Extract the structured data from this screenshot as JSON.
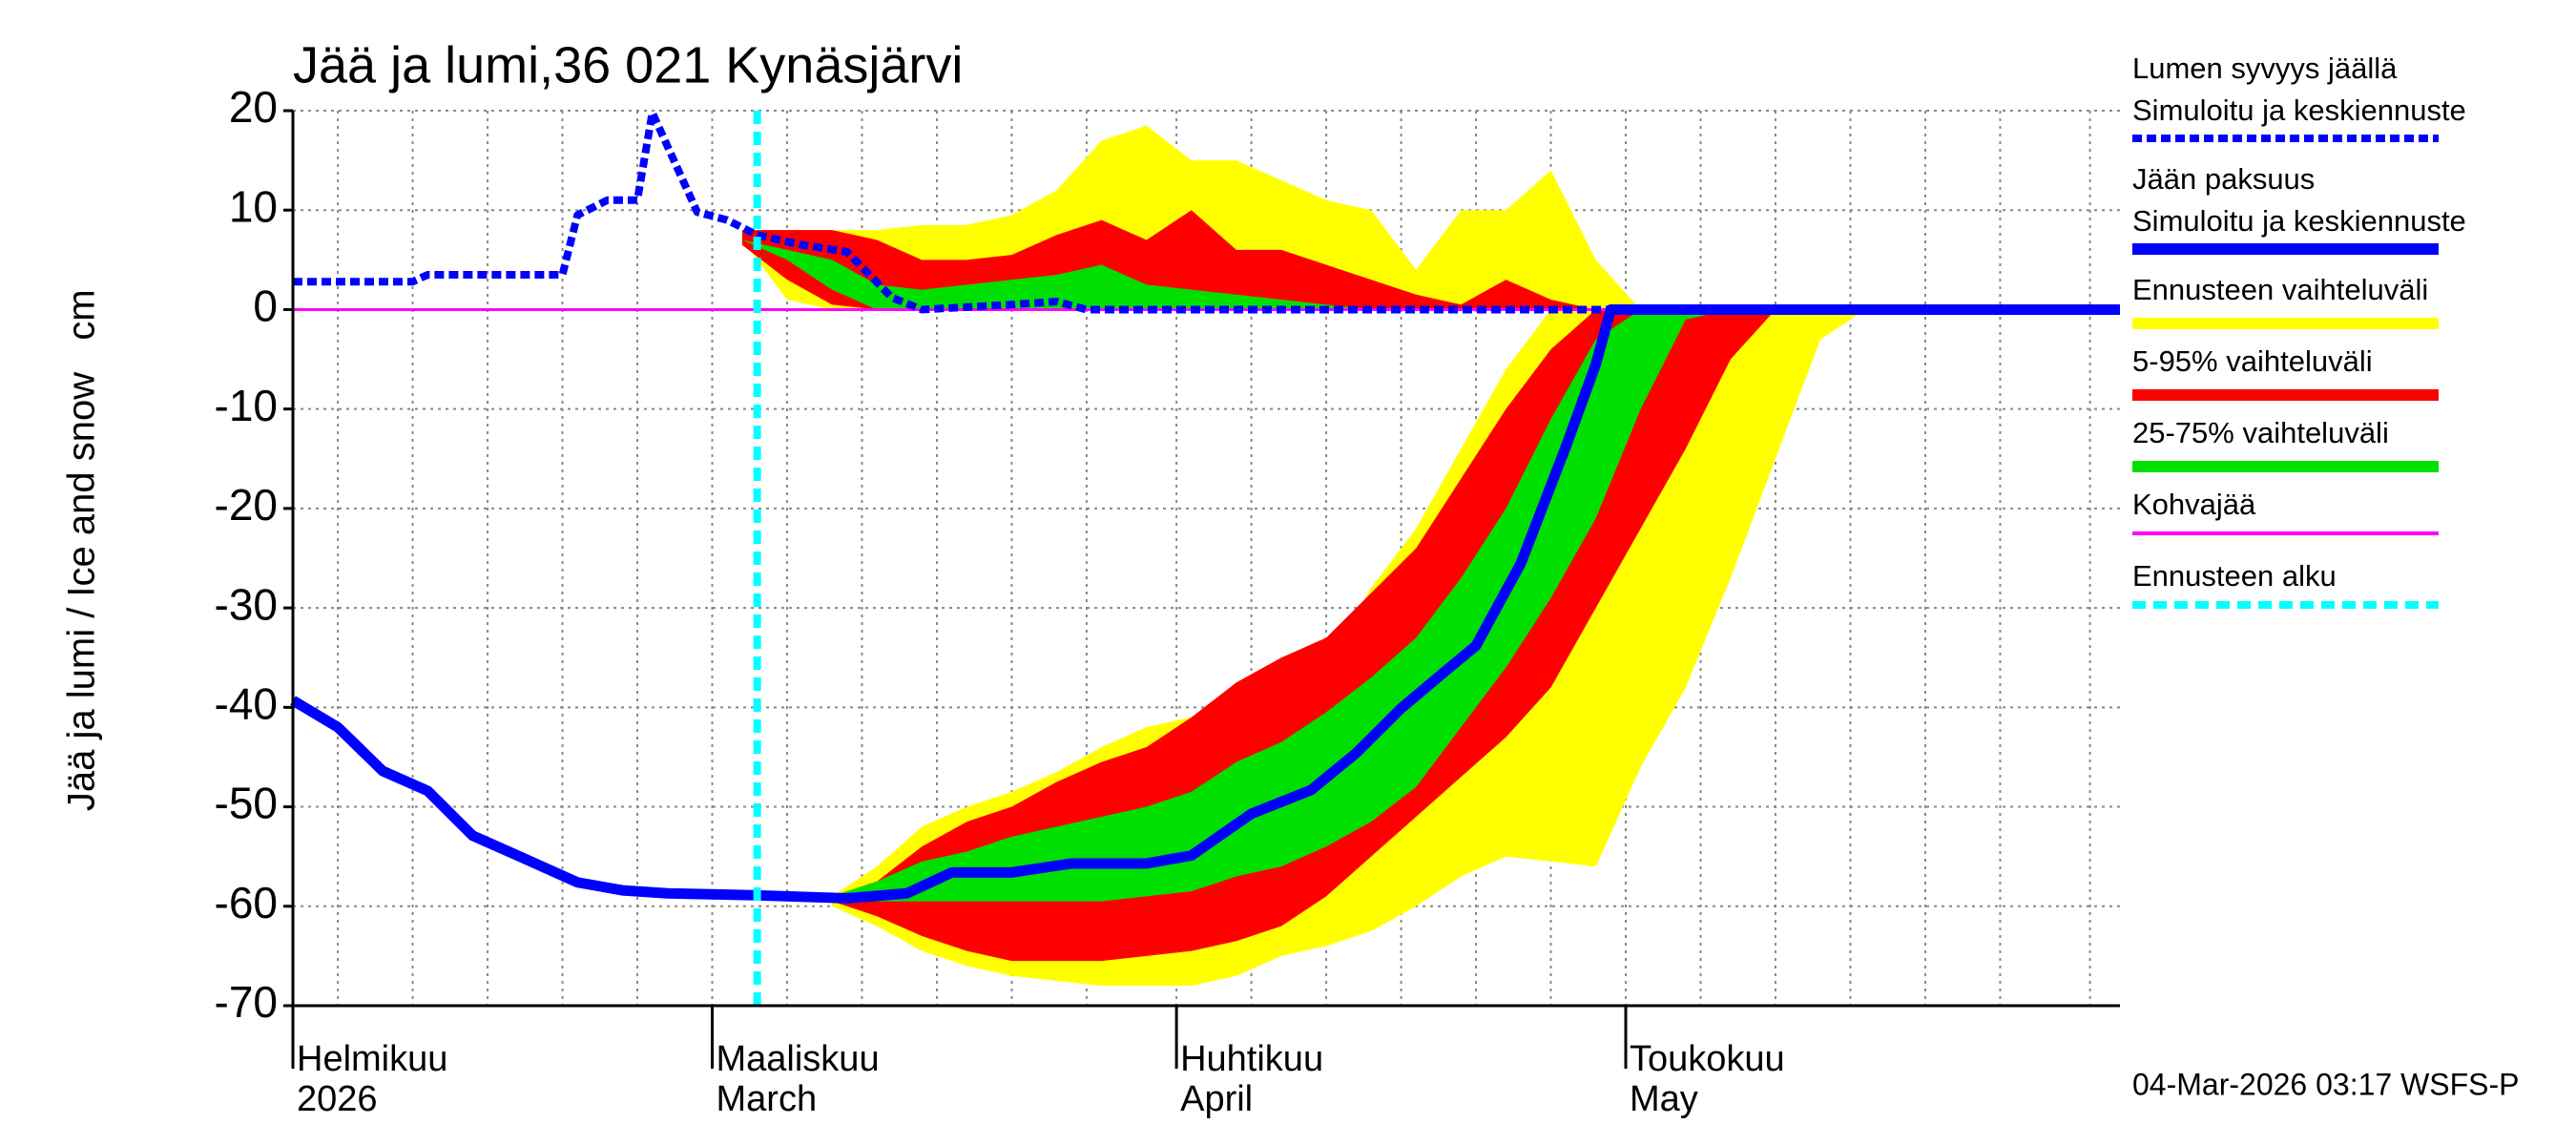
{
  "chart_data": {
    "type": "line",
    "title": "Jää ja lumi,36 021 Kynäsjärvi",
    "ylabel": "Jää ja lumi / Ice and snow",
    "yunit": "cm",
    "footer": "04-Mar-2026 03:17 WSFS-P",
    "xlim": [
      0,
      122
    ],
    "ylim": [
      -70,
      20
    ],
    "yticks": [
      20,
      10,
      0,
      -10,
      -20,
      -30,
      -40,
      -50,
      -60,
      -70
    ],
    "xticks": [
      {
        "value": 0,
        "label": "Helmikuu"
      },
      {
        "value": 28,
        "label": "Maaliskuu"
      },
      {
        "value": 59,
        "label": "Huhtikuu"
      },
      {
        "value": 89,
        "label": "Toukokuu"
      }
    ],
    "xticks2": [
      {
        "value": 0,
        "label": "2026"
      },
      {
        "value": 28,
        "label": "March"
      },
      {
        "value": 59,
        "label": "April"
      },
      {
        "value": 89,
        "label": "May"
      }
    ],
    "xgrid": [
      3,
      8,
      13,
      18,
      23,
      28,
      33,
      38,
      43,
      48,
      53,
      59,
      64,
      69,
      74,
      79,
      84,
      89,
      94,
      99,
      104,
      109,
      114,
      120
    ],
    "grid": true,
    "bands": [
      {
        "name": "Ennusteen vaihteluväli",
        "color": "#ffff00",
        "snow": {
          "x": [
            30,
            33,
            36,
            39,
            42,
            45,
            48,
            51,
            54,
            57,
            60,
            63,
            66,
            69,
            72,
            75,
            78,
            81,
            84,
            87,
            90
          ],
          "low": [
            7,
            1,
            0,
            0,
            0,
            0,
            0,
            0,
            0,
            0,
            0,
            0,
            0,
            0,
            0,
            0,
            0,
            0,
            0,
            0,
            0
          ],
          "high": [
            8,
            8,
            8,
            8,
            8.5,
            8.5,
            9.5,
            12,
            17,
            18.5,
            15,
            15,
            13,
            11,
            10,
            4,
            10,
            10,
            14,
            5,
            0
          ]
        },
        "ice": {
          "x": [
            36,
            39,
            42,
            45,
            48,
            51,
            54,
            57,
            60,
            63,
            66,
            69,
            72,
            75,
            78,
            81,
            84,
            87,
            90,
            93,
            96,
            99,
            102,
            105
          ],
          "low": [
            -60,
            -62,
            -64.5,
            -66,
            -67,
            -67.5,
            -68,
            -68,
            -68,
            -67,
            -65,
            -64,
            -62.5,
            -60,
            -57,
            -55,
            -55.5,
            -56,
            -46,
            -38,
            -27,
            -15,
            -3,
            0
          ],
          "high": [
            -59,
            -56,
            -52,
            -50,
            -48.5,
            -46.5,
            -44,
            -42,
            -41,
            -40,
            -38.5,
            -35.5,
            -28,
            -22,
            -14,
            -6,
            0,
            0,
            0,
            0,
            0,
            0,
            0,
            0
          ]
        }
      },
      {
        "name": "5-95% vaihteluväli",
        "color": "#ff0000",
        "snow": {
          "x": [
            30,
            33,
            36,
            39,
            42,
            45,
            48,
            51,
            54,
            57,
            60,
            63,
            66,
            69,
            72,
            75,
            78,
            81,
            84,
            87,
            90
          ],
          "low": [
            6.5,
            3,
            0.5,
            0,
            0,
            0,
            0,
            0,
            0,
            0,
            0,
            0,
            0,
            0,
            0,
            0,
            0,
            0,
            0,
            0,
            0
          ],
          "high": [
            8,
            8,
            8,
            7,
            5,
            5,
            5.5,
            7.5,
            9,
            7,
            10,
            6,
            6,
            4.5,
            3,
            1.5,
            0.5,
            3,
            1,
            0,
            0
          ]
        },
        "ice": {
          "x": [
            36,
            39,
            42,
            45,
            48,
            51,
            54,
            57,
            60,
            63,
            66,
            69,
            72,
            75,
            78,
            81,
            84,
            87,
            90,
            93,
            96,
            99,
            102,
            105
          ],
          "low": [
            -59.5,
            -61,
            -63,
            -64.5,
            -65.5,
            -65.5,
            -65.5,
            -65,
            -64.5,
            -63.5,
            -62,
            -59,
            -55,
            -51,
            -47,
            -43,
            -38,
            -30,
            -22,
            -14,
            -5,
            0,
            0,
            0
          ],
          "high": [
            -59,
            -57.5,
            -54,
            -51.5,
            -50,
            -47.5,
            -45.5,
            -44,
            -41,
            -37.5,
            -35,
            -33,
            -28.5,
            -24,
            -17,
            -10,
            -4,
            0,
            0,
            0,
            0,
            0,
            0,
            0
          ]
        }
      },
      {
        "name": "25-75% vaihteluväli",
        "color": "#00e000",
        "snow": {
          "x": [
            30,
            33,
            36,
            39,
            42,
            45,
            48,
            51,
            54,
            57,
            60,
            63,
            66,
            69,
            72,
            75,
            78,
            81,
            84,
            87,
            90
          ],
          "low": [
            7,
            5,
            2,
            0,
            0,
            0,
            0,
            0,
            0,
            0,
            0,
            0,
            0,
            0,
            0,
            0,
            0,
            0,
            0,
            0,
            0
          ],
          "high": [
            7,
            6,
            5,
            2.5,
            2,
            2.5,
            3,
            3.5,
            4.5,
            2.5,
            2,
            1.5,
            1,
            0.5,
            0,
            0,
            0,
            0,
            0,
            0,
            0
          ]
        },
        "ice": {
          "x": [
            36,
            39,
            42,
            45,
            48,
            51,
            54,
            57,
            60,
            63,
            66,
            69,
            72,
            75,
            78,
            81,
            84,
            87,
            90,
            93,
            96,
            99,
            102,
            105
          ],
          "low": [
            -59,
            -59.5,
            -59.5,
            -59.5,
            -59.5,
            -59.5,
            -59.5,
            -59,
            -58.5,
            -57,
            -56,
            -54,
            -51.5,
            -48,
            -42,
            -36,
            -29,
            -21,
            -10,
            -1,
            0,
            0,
            0,
            0
          ],
          "high": [
            -59,
            -57.5,
            -55.5,
            -54.5,
            -53,
            -52,
            -51,
            -50,
            -48.5,
            -45.5,
            -43.5,
            -40.5,
            -37,
            -33,
            -27,
            -20,
            -11,
            -3,
            0,
            0,
            0,
            0,
            0,
            0
          ]
        }
      }
    ],
    "series": [
      {
        "name": "Lumen syvyys jäällä",
        "subname": "Simuloitu ja keskiennuste",
        "color": "#0000ff",
        "dashed": true,
        "x": [
          0,
          8,
          9,
          18,
          19,
          21,
          23,
          24,
          27,
          29,
          31,
          34,
          37,
          40,
          42,
          48,
          51,
          53,
          122
        ],
        "values": [
          2.8,
          2.8,
          3.5,
          3.5,
          9.5,
          11,
          11,
          19.8,
          9.8,
          9,
          7.5,
          6.5,
          5.8,
          1.2,
          0,
          0.5,
          0.8,
          0,
          0
        ]
      },
      {
        "name": "Jään paksuus",
        "subname": "Simuloitu ja keskiennuste",
        "color": "#0000ff",
        "dashed": false,
        "x": [
          0,
          3,
          6,
          9,
          12,
          15,
          19,
          22,
          25,
          31,
          37,
          41,
          44,
          48,
          52,
          57,
          60,
          64,
          68,
          71,
          74,
          77,
          79,
          82,
          85,
          87,
          88,
          122
        ],
        "values": [
          -39.3,
          -42,
          -46.4,
          -48.4,
          -52.9,
          -54.9,
          -57.6,
          -58.4,
          -58.7,
          -58.9,
          -59.2,
          -58.7,
          -56.6,
          -56.6,
          -55.7,
          -55.7,
          -54.9,
          -50.7,
          -48.3,
          -44.6,
          -40.1,
          -36.3,
          -33.8,
          -25.5,
          -13.8,
          -5.5,
          0,
          0
        ]
      }
    ],
    "hline": {
      "name": "Kohvajää",
      "color": "#ff00ff",
      "value": 0
    },
    "vline": {
      "name": "Ennusteen alku",
      "color": "#00ffff",
      "value": 31
    }
  }
}
